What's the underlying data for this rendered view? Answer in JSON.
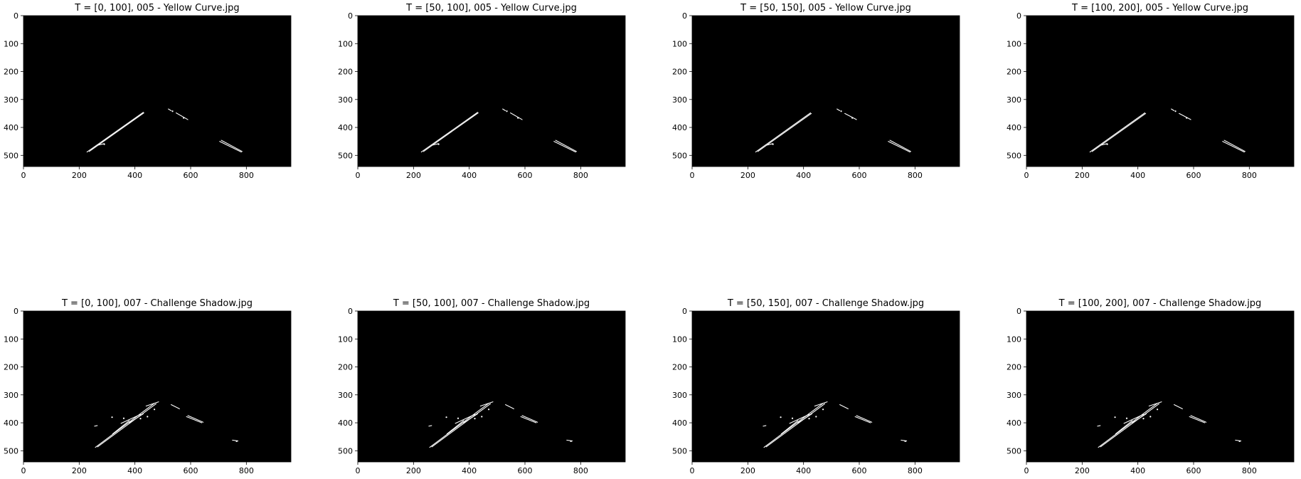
{
  "chart_data": [
    {
      "type": "image",
      "title": "T = [0, 100], 005 - Yellow Curve.jpg",
      "scene": "yellow_curve",
      "xlim": [
        0,
        960
      ],
      "ylim": [
        540,
        0
      ],
      "xticks": [
        0,
        200,
        400,
        600,
        800
      ],
      "yticks": [
        0,
        100,
        200,
        300,
        400,
        500
      ],
      "background": "#000000",
      "edge_segments": [
        [
          [
            228,
            488
          ],
          [
            430,
            346
          ]
        ],
        [
          [
            236,
            486
          ],
          [
            432,
            348
          ]
        ],
        [
          [
            270,
            463
          ],
          [
            290,
            458
          ]
        ],
        [
          [
            520,
            334
          ],
          [
            530,
            340
          ]
        ],
        [
          [
            548,
            348
          ],
          [
            590,
            372
          ]
        ],
        [
          [
            704,
            450
          ],
          [
            782,
            488
          ]
        ],
        [
          [
            710,
            446
          ],
          [
            785,
            486
          ]
        ]
      ],
      "specks": [
        [
          290,
          460
        ],
        [
          535,
          342
        ],
        [
          575,
          366
        ]
      ]
    },
    {
      "type": "image",
      "title": "T = [50, 100], 005 - Yellow Curve.jpg",
      "scene": "yellow_curve",
      "xlim": [
        0,
        960
      ],
      "ylim": [
        540,
        0
      ],
      "xticks": [
        0,
        200,
        400,
        600,
        800
      ],
      "yticks": [
        0,
        100,
        200,
        300,
        400,
        500
      ],
      "background": "#000000",
      "edge_segments": [
        [
          [
            228,
            488
          ],
          [
            430,
            346
          ]
        ],
        [
          [
            236,
            486
          ],
          [
            432,
            348
          ]
        ],
        [
          [
            270,
            463
          ],
          [
            290,
            458
          ]
        ],
        [
          [
            520,
            334
          ],
          [
            530,
            340
          ]
        ],
        [
          [
            548,
            348
          ],
          [
            590,
            372
          ]
        ],
        [
          [
            704,
            450
          ],
          [
            782,
            488
          ]
        ],
        [
          [
            710,
            446
          ],
          [
            785,
            486
          ]
        ]
      ],
      "specks": [
        [
          290,
          460
        ],
        [
          535,
          342
        ],
        [
          575,
          366
        ]
      ]
    },
    {
      "type": "image",
      "title": "T = [50, 150], 005 - Yellow Curve.jpg",
      "scene": "yellow_curve",
      "xlim": [
        0,
        960
      ],
      "ylim": [
        540,
        0
      ],
      "xticks": [
        0,
        200,
        400,
        600,
        800
      ],
      "yticks": [
        0,
        100,
        200,
        300,
        400,
        500
      ],
      "background": "#000000",
      "edge_segments": [
        [
          [
            228,
            488
          ],
          [
            425,
            348
          ]
        ],
        [
          [
            236,
            486
          ],
          [
            428,
            350
          ]
        ],
        [
          [
            270,
            463
          ],
          [
            290,
            458
          ]
        ],
        [
          [
            520,
            334
          ],
          [
            530,
            340
          ]
        ],
        [
          [
            548,
            350
          ],
          [
            590,
            372
          ]
        ],
        [
          [
            704,
            450
          ],
          [
            782,
            488
          ]
        ],
        [
          [
            710,
            446
          ],
          [
            785,
            486
          ]
        ]
      ],
      "specks": [
        [
          290,
          460
        ],
        [
          535,
          342
        ],
        [
          575,
          366
        ]
      ]
    },
    {
      "type": "image",
      "title": "T = [100, 200], 005 - Yellow Curve.jpg",
      "scene": "yellow_curve",
      "xlim": [
        0,
        960
      ],
      "ylim": [
        540,
        0
      ],
      "xticks": [
        0,
        200,
        400,
        600,
        800
      ],
      "yticks": [
        0,
        100,
        200,
        300,
        400,
        500
      ],
      "background": "#000000",
      "edge_segments": [
        [
          [
            228,
            488
          ],
          [
            425,
            348
          ]
        ],
        [
          [
            236,
            486
          ],
          [
            428,
            350
          ]
        ],
        [
          [
            270,
            463
          ],
          [
            290,
            458
          ]
        ],
        [
          [
            520,
            334
          ],
          [
            530,
            340
          ]
        ],
        [
          [
            548,
            350
          ],
          [
            590,
            372
          ]
        ],
        [
          [
            704,
            450
          ],
          [
            782,
            488
          ]
        ],
        [
          [
            710,
            446
          ],
          [
            785,
            486
          ]
        ]
      ],
      "specks": [
        [
          290,
          460
        ],
        [
          535,
          342
        ],
        [
          575,
          366
        ]
      ]
    },
    {
      "type": "image",
      "title": "T = [0, 100], 007 - Challenge Shadow.jpg",
      "scene": "challenge_shadow",
      "xlim": [
        0,
        960
      ],
      "ylim": [
        540,
        0
      ],
      "xticks": [
        0,
        200,
        400,
        600,
        800
      ],
      "yticks": [
        0,
        100,
        200,
        300,
        400,
        500
      ],
      "background": "#000000",
      "edge_segments": [
        [
          [
            258,
            488
          ],
          [
            470,
            330
          ]
        ],
        [
          [
            266,
            486
          ],
          [
            476,
            332
          ]
        ],
        [
          [
            320,
            440
          ],
          [
            380,
            392
          ]
        ],
        [
          [
            350,
            402
          ],
          [
            420,
            370
          ]
        ],
        [
          [
            380,
            400
          ],
          [
            430,
            368
          ]
        ],
        [
          [
            440,
            340
          ],
          [
            485,
            325
          ]
        ],
        [
          [
            530,
            335
          ],
          [
            560,
            350
          ]
        ],
        [
          [
            585,
            378
          ],
          [
            640,
            400
          ]
        ],
        [
          [
            590,
            374
          ],
          [
            645,
            398
          ]
        ],
        [
          [
            750,
            462
          ],
          [
            770,
            465
          ]
        ],
        [
          [
            255,
            412
          ],
          [
            265,
            410
          ]
        ]
      ],
      "specks": [
        [
          318,
          380
        ],
        [
          360,
          384
        ],
        [
          420,
          385
        ],
        [
          445,
          378
        ],
        [
          470,
          352
        ],
        [
          765,
          466
        ]
      ]
    },
    {
      "type": "image",
      "title": "T = [50, 100], 007 - Challenge Shadow.jpg",
      "scene": "challenge_shadow",
      "xlim": [
        0,
        960
      ],
      "ylim": [
        540,
        0
      ],
      "xticks": [
        0,
        200,
        400,
        600,
        800
      ],
      "yticks": [
        0,
        100,
        200,
        300,
        400,
        500
      ],
      "background": "#000000",
      "edge_segments": [
        [
          [
            258,
            488
          ],
          [
            470,
            330
          ]
        ],
        [
          [
            266,
            486
          ],
          [
            476,
            332
          ]
        ],
        [
          [
            320,
            440
          ],
          [
            380,
            392
          ]
        ],
        [
          [
            350,
            402
          ],
          [
            420,
            370
          ]
        ],
        [
          [
            380,
            400
          ],
          [
            430,
            368
          ]
        ],
        [
          [
            440,
            340
          ],
          [
            485,
            325
          ]
        ],
        [
          [
            530,
            335
          ],
          [
            560,
            350
          ]
        ],
        [
          [
            585,
            378
          ],
          [
            640,
            400
          ]
        ],
        [
          [
            590,
            374
          ],
          [
            645,
            398
          ]
        ],
        [
          [
            750,
            462
          ],
          [
            770,
            465
          ]
        ],
        [
          [
            255,
            412
          ],
          [
            265,
            410
          ]
        ]
      ],
      "specks": [
        [
          318,
          380
        ],
        [
          360,
          384
        ],
        [
          420,
          385
        ],
        [
          445,
          378
        ],
        [
          470,
          352
        ],
        [
          765,
          466
        ]
      ]
    },
    {
      "type": "image",
      "title": "T = [50, 150], 007 - Challenge Shadow.jpg",
      "scene": "challenge_shadow",
      "xlim": [
        0,
        960
      ],
      "ylim": [
        540,
        0
      ],
      "xticks": [
        0,
        200,
        400,
        600,
        800
      ],
      "yticks": [
        0,
        100,
        200,
        300,
        400,
        500
      ],
      "background": "#000000",
      "edge_segments": [
        [
          [
            258,
            488
          ],
          [
            470,
            330
          ]
        ],
        [
          [
            266,
            486
          ],
          [
            476,
            332
          ]
        ],
        [
          [
            320,
            440
          ],
          [
            380,
            392
          ]
        ],
        [
          [
            350,
            402
          ],
          [
            420,
            370
          ]
        ],
        [
          [
            380,
            400
          ],
          [
            430,
            368
          ]
        ],
        [
          [
            440,
            340
          ],
          [
            485,
            325
          ]
        ],
        [
          [
            530,
            335
          ],
          [
            560,
            350
          ]
        ],
        [
          [
            585,
            378
          ],
          [
            640,
            400
          ]
        ],
        [
          [
            590,
            374
          ],
          [
            645,
            398
          ]
        ],
        [
          [
            750,
            462
          ],
          [
            770,
            465
          ]
        ],
        [
          [
            255,
            412
          ],
          [
            265,
            410
          ]
        ]
      ],
      "specks": [
        [
          318,
          380
        ],
        [
          360,
          384
        ],
        [
          420,
          385
        ],
        [
          445,
          378
        ],
        [
          470,
          352
        ],
        [
          765,
          466
        ]
      ]
    },
    {
      "type": "image",
      "title": "T = [100, 200], 007 - Challenge Shadow.jpg",
      "scene": "challenge_shadow",
      "xlim": [
        0,
        960
      ],
      "ylim": [
        540,
        0
      ],
      "xticks": [
        0,
        200,
        400,
        600,
        800
      ],
      "yticks": [
        0,
        100,
        200,
        300,
        400,
        500
      ],
      "background": "#000000",
      "edge_segments": [
        [
          [
            258,
            488
          ],
          [
            470,
            330
          ]
        ],
        [
          [
            266,
            486
          ],
          [
            476,
            332
          ]
        ],
        [
          [
            320,
            440
          ],
          [
            380,
            392
          ]
        ],
        [
          [
            350,
            402
          ],
          [
            420,
            370
          ]
        ],
        [
          [
            380,
            400
          ],
          [
            430,
            368
          ]
        ],
        [
          [
            440,
            340
          ],
          [
            485,
            325
          ]
        ],
        [
          [
            530,
            335
          ],
          [
            560,
            350
          ]
        ],
        [
          [
            585,
            378
          ],
          [
            640,
            400
          ]
        ],
        [
          [
            590,
            374
          ],
          [
            645,
            398
          ]
        ],
        [
          [
            750,
            462
          ],
          [
            770,
            465
          ]
        ],
        [
          [
            255,
            412
          ],
          [
            265,
            410
          ]
        ]
      ],
      "specks": [
        [
          318,
          380
        ],
        [
          360,
          384
        ],
        [
          420,
          385
        ],
        [
          445,
          378
        ],
        [
          470,
          352
        ],
        [
          765,
          466
        ]
      ]
    }
  ]
}
